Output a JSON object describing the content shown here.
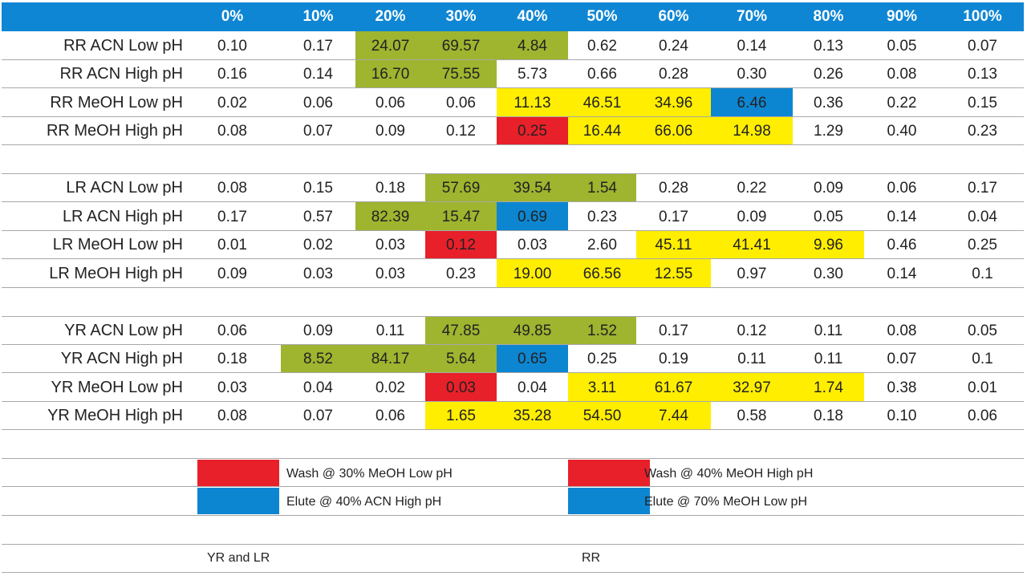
{
  "header": {
    "columns": [
      "0%",
      "10%",
      "20%",
      "30%",
      "40%",
      "50%",
      "60%",
      "70%",
      "80%",
      "90%",
      "100%"
    ]
  },
  "colors": {
    "header_bg": "#0e86d4",
    "green": "#9fb42f",
    "yellow": "#ffee00",
    "red": "#e8202a",
    "blue": "#0d86d2"
  },
  "groups": [
    {
      "rows": [
        {
          "label": "RR ACN Low pH",
          "values": [
            "0.10",
            "0.17",
            "24.07",
            "69.57",
            "4.84",
            "0.62",
            "0.24",
            "0.14",
            "0.13",
            "0.05",
            "0.07"
          ],
          "highlights": [
            "",
            "",
            "green",
            "green",
            "green",
            "",
            "",
            "",
            "",
            "",
            ""
          ]
        },
        {
          "label": "RR ACN High pH",
          "values": [
            "0.16",
            "0.14",
            "16.70",
            "75.55",
            "5.73",
            "0.66",
            "0.28",
            "0.30",
            "0.26",
            "0.08",
            "0.13"
          ],
          "highlights": [
            "",
            "",
            "green",
            "green",
            "",
            "",
            "",
            "",
            "",
            "",
            ""
          ]
        },
        {
          "label": "RR MeOH Low pH",
          "values": [
            "0.02",
            "0.06",
            "0.06",
            "0.06",
            "11.13",
            "46.51",
            "34.96",
            "6.46",
            "0.36",
            "0.22",
            "0.15"
          ],
          "highlights": [
            "",
            "",
            "",
            "",
            "yellow",
            "yellow",
            "yellow",
            "blue",
            "",
            "",
            ""
          ]
        },
        {
          "label": "RR MeOH High pH",
          "values": [
            "0.08",
            "0.07",
            "0.09",
            "0.12",
            "0.25",
            "16.44",
            "66.06",
            "14.98",
            "1.29",
            "0.40",
            "0.23"
          ],
          "highlights": [
            "",
            "",
            "",
            "",
            "red",
            "yellow",
            "yellow",
            "yellow",
            "",
            "",
            ""
          ]
        }
      ]
    },
    {
      "rows": [
        {
          "label": "LR ACN Low pH",
          "values": [
            "0.08",
            "0.15",
            "0.18",
            "57.69",
            "39.54",
            "1.54",
            "0.28",
            "0.22",
            "0.09",
            "0.06",
            "0.17"
          ],
          "highlights": [
            "",
            "",
            "",
            "green",
            "green",
            "green",
            "",
            "",
            "",
            "",
            ""
          ]
        },
        {
          "label": "LR ACN High pH",
          "values": [
            "0.17",
            "0.57",
            "82.39",
            "15.47",
            "0.69",
            "0.23",
            "0.17",
            "0.09",
            "0.05",
            "0.14",
            "0.04"
          ],
          "highlights": [
            "",
            "",
            "green",
            "green",
            "blue",
            "",
            "",
            "",
            "",
            "",
            ""
          ]
        },
        {
          "label": "LR MeOH Low pH",
          "values": [
            "0.01",
            "0.02",
            "0.03",
            "0.12",
            "0.03",
            "2.60",
            "45.11",
            "41.41",
            "9.96",
            "0.46",
            "0.25"
          ],
          "highlights": [
            "",
            "",
            "",
            "red",
            "",
            "",
            "yellow",
            "yellow",
            "yellow",
            "",
            ""
          ]
        },
        {
          "label": "LR MeOH High pH",
          "values": [
            "0.09",
            "0.03",
            "0.03",
            "0.23",
            "19.00",
            "66.56",
            "12.55",
            "0.97",
            "0.30",
            "0.14",
            "0.1"
          ],
          "highlights": [
            "",
            "",
            "",
            "",
            "yellow",
            "yellow",
            "yellow",
            "",
            "",
            "",
            ""
          ]
        }
      ]
    },
    {
      "rows": [
        {
          "label": "YR ACN Low pH",
          "values": [
            "0.06",
            "0.09",
            "0.11",
            "47.85",
            "49.85",
            "1.52",
            "0.17",
            "0.12",
            "0.11",
            "0.08",
            "0.05"
          ],
          "highlights": [
            "",
            "",
            "",
            "green",
            "green",
            "green",
            "",
            "",
            "",
            "",
            ""
          ]
        },
        {
          "label": "YR ACN High pH",
          "values": [
            "0.18",
            "8.52",
            "84.17",
            "5.64",
            "0.65",
            "0.25",
            "0.19",
            "0.11",
            "0.11",
            "0.07",
            "0.1"
          ],
          "highlights": [
            "",
            "green",
            "green",
            "green",
            "blue",
            "",
            "",
            "",
            "",
            "",
            ""
          ]
        },
        {
          "label": "YR MeOH Low pH",
          "values": [
            "0.03",
            "0.04",
            "0.02",
            "0.03",
            "0.04",
            "3.11",
            "61.67",
            "32.97",
            "1.74",
            "0.38",
            "0.01"
          ],
          "highlights": [
            "",
            "",
            "",
            "red",
            "",
            "yellow",
            "yellow",
            "yellow",
            "yellow",
            "",
            ""
          ]
        },
        {
          "label": "YR MeOH High pH",
          "values": [
            "0.08",
            "0.07",
            "0.06",
            "1.65",
            "35.28",
            "54.50",
            "7.44",
            "0.58",
            "0.18",
            "0.10",
            "0.06"
          ],
          "highlights": [
            "",
            "",
            "",
            "yellow",
            "yellow",
            "yellow",
            "yellow",
            "",
            "",
            "",
            ""
          ]
        }
      ]
    }
  ],
  "legend": {
    "left": [
      {
        "color": "red",
        "text": "Wash @ 30% MeOH Low pH"
      },
      {
        "color": "blue",
        "text": "Elute @ 40% ACN High pH"
      }
    ],
    "right": [
      {
        "color": "red",
        "text": "Wash @ 40% MeOH High pH"
      },
      {
        "color": "blue",
        "text": "Elute @ 70% MeOH Low pH"
      }
    ]
  },
  "footer": {
    "left": "YR and LR",
    "right": "RR"
  }
}
